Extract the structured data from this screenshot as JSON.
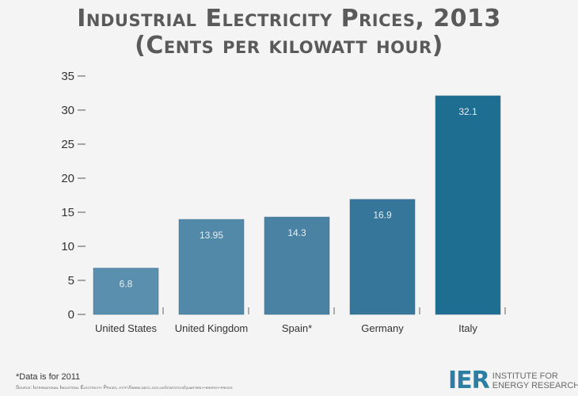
{
  "chart_data": {
    "type": "bar",
    "title": "Industrial Electricity Prices, 2013",
    "subtitle": "(Cents per kilowatt hour)",
    "categories": [
      "United States",
      "United Kingdom",
      "Spain*",
      "Germany",
      "Italy"
    ],
    "values": [
      6.8,
      13.95,
      14.3,
      16.9,
      32.1
    ],
    "value_labels": [
      "6.8",
      "13.95",
      "14.3",
      "16.9",
      "32.1"
    ],
    "yticks": [
      "0",
      "5",
      "10",
      "15",
      "20",
      "25",
      "30",
      "35"
    ],
    "ylim": [
      0,
      35
    ],
    "grid": false,
    "bar_colors": [
      "#5b8fae",
      "#5288a8",
      "#4a82a3",
      "#35769a",
      "#1e6e92"
    ]
  },
  "footnote": "*Data is for 2011",
  "source": "Source: International Industrial Electricity Prices, http://www.decc.gov.uk/statistics/quarterly-energy-prices",
  "logo": {
    "mark": "IER",
    "line1": "Institute for",
    "line2": "Energy Research"
  }
}
